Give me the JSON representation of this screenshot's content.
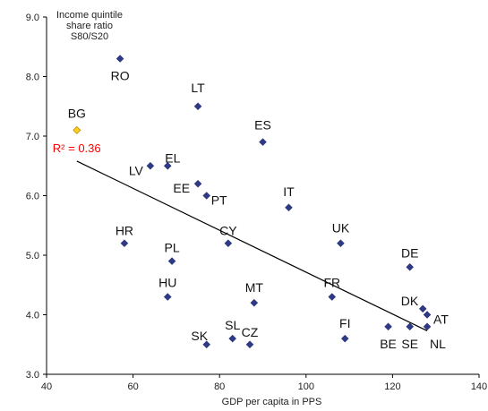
{
  "chart_data": {
    "type": "scatter",
    "title": "",
    "ylabel_lines": [
      "Income quintile",
      "share ratio",
      "S80/S20"
    ],
    "xlabel": "GDP per capita in PPS",
    "xlim": [
      40,
      140
    ],
    "ylim": [
      3.0,
      9.0
    ],
    "x_ticks": [
      40,
      60,
      80,
      100,
      120,
      140
    ],
    "x_tick_labels": [
      "40",
      "60",
      "80",
      "100",
      "120",
      "140"
    ],
    "y_ticks": [
      3.0,
      4.0,
      5.0,
      6.0,
      7.0,
      8.0,
      9.0
    ],
    "y_tick_labels": [
      "3.0",
      "4.0",
      "5.0",
      "6.0",
      "7.0",
      "8.0",
      "9.0"
    ],
    "grid": false,
    "point_color": "#2e3a87",
    "highlight_color": "#ffd11a",
    "trendline": {
      "label": "R² = 0.36",
      "label_color": "#ff0000",
      "x": [
        47,
        128
      ],
      "y": [
        6.58,
        3.73
      ]
    },
    "points": [
      {
        "label": "RO",
        "x": 57,
        "y": 8.3
      },
      {
        "label": "LT",
        "x": 75,
        "y": 7.5
      },
      {
        "label": "BG",
        "x": 47,
        "y": 7.1,
        "highlight": true
      },
      {
        "label": "ES",
        "x": 90,
        "y": 6.9
      },
      {
        "label": "LV",
        "x": 64,
        "y": 6.5
      },
      {
        "label": "EL",
        "x": 68,
        "y": 6.5
      },
      {
        "label": "EE",
        "x": 75,
        "y": 6.2
      },
      {
        "label": "PT",
        "x": 77,
        "y": 6.0
      },
      {
        "label": "IT",
        "x": 96,
        "y": 5.8
      },
      {
        "label": "HR",
        "x": 58,
        "y": 5.2
      },
      {
        "label": "CY",
        "x": 82,
        "y": 5.2
      },
      {
        "label": "UK",
        "x": 108,
        "y": 5.2
      },
      {
        "label": "PL",
        "x": 69,
        "y": 4.9
      },
      {
        "label": "DE",
        "x": 124,
        "y": 4.8
      },
      {
        "label": "HU",
        "x": 68,
        "y": 4.3
      },
      {
        "label": "FR",
        "x": 106,
        "y": 4.3
      },
      {
        "label": "MT",
        "x": 88,
        "y": 4.2
      },
      {
        "label": "DK",
        "x": 127,
        "y": 4.1
      },
      {
        "label": "AT",
        "x": 128,
        "y": 4.0
      },
      {
        "label": "BE",
        "x": 119,
        "y": 3.8
      },
      {
        "label": "SE",
        "x": 124,
        "y": 3.8
      },
      {
        "label": "NL",
        "x": 128,
        "y": 3.8
      },
      {
        "label": "FI",
        "x": 109,
        "y": 3.6
      },
      {
        "label": "SL",
        "x": 83,
        "y": 3.6
      },
      {
        "label": "SK",
        "x": 77,
        "y": 3.5
      },
      {
        "label": "CZ",
        "x": 87,
        "y": 3.5
      }
    ]
  }
}
